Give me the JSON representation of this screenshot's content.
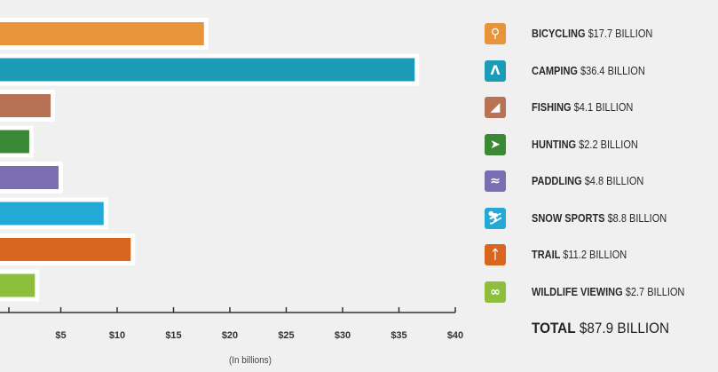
{
  "chart_data": {
    "type": "bar",
    "orientation": "horizontal",
    "categories": [
      "BICYCLING",
      "CAMPING",
      "FISHING",
      "HUNTING",
      "PADDLING",
      "SNOW SPORTS",
      "TRAIL",
      "WILDLIFE VIEWING"
    ],
    "values": [
      17.7,
      36.4,
      4.1,
      2.2,
      4.8,
      8.8,
      11.2,
      2.7
    ],
    "colors": [
      "#e8943a",
      "#1b9bb6",
      "#b87356",
      "#3a8a35",
      "#7a6db0",
      "#22a9d6",
      "#d9661f",
      "#8dbf3c"
    ],
    "xlim": [
      0,
      40
    ],
    "xticks": [
      5,
      10,
      15,
      20,
      25,
      30,
      35,
      40
    ],
    "xtick_labels": [
      "$5",
      "$10",
      "$15",
      "$20",
      "$25",
      "$30",
      "$35",
      "$40"
    ],
    "xlabel": "(In billions)",
    "legend": [
      {
        "name": "BICYCLING",
        "amount": "$17.7 BILLION",
        "icon": "bicycle-icon",
        "glyph": "⚲"
      },
      {
        "name": "CAMPING",
        "amount": "$36.4 BILLION",
        "icon": "tent-icon",
        "glyph": "Λ"
      },
      {
        "name": "FISHING",
        "amount": "$4.1 BILLION",
        "icon": "fish-icon",
        "glyph": "◢"
      },
      {
        "name": "HUNTING",
        "amount": "$2.2 BILLION",
        "icon": "hunting-icon",
        "glyph": "➤"
      },
      {
        "name": "PADDLING",
        "amount": "$4.8 BILLION",
        "icon": "kayak-icon",
        "glyph": "≈"
      },
      {
        "name": "SNOW SPORTS",
        "amount": "$8.8 BILLION",
        "icon": "skier-icon",
        "glyph": "⛷"
      },
      {
        "name": "TRAIL",
        "amount": "$11.2 BILLION",
        "icon": "hiker-icon",
        "glyph": "ᛏ"
      },
      {
        "name": "WILDLIFE VIEWING",
        "amount": "$2.7 BILLION",
        "icon": "binoculars-icon",
        "glyph": "∞"
      }
    ],
    "total_label": "TOTAL",
    "total_amount": "$87.9 BILLION"
  }
}
